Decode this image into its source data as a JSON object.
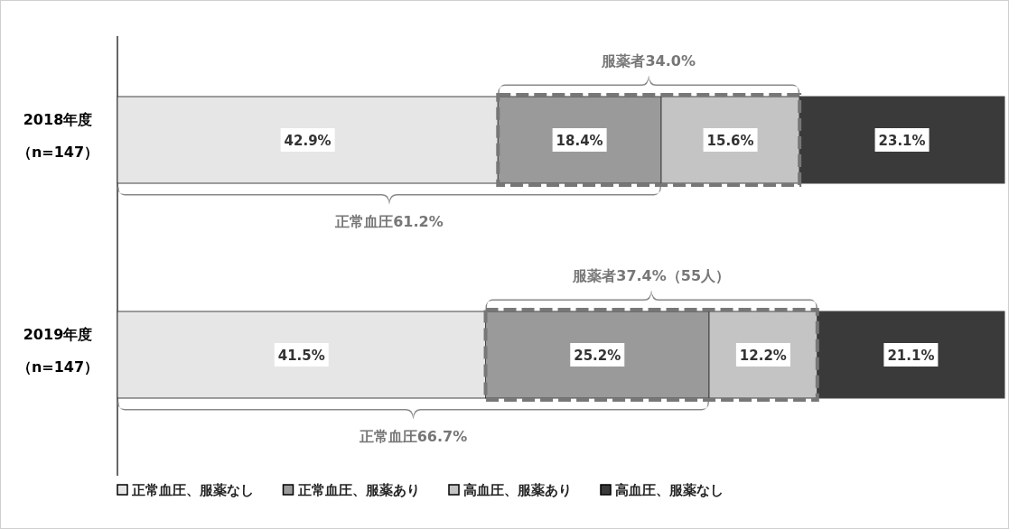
{
  "chart_data": {
    "type": "bar",
    "orientation": "horizontal",
    "stacked": true,
    "categories": [
      "2018年度（n=147）",
      "2019年度（n=147）"
    ],
    "xlim": [
      0,
      100
    ],
    "tick_labels": "y",
    "legend": "bottom",
    "series": [
      {
        "name": "正常血圧、服薬なし",
        "color": "#e6e6e6",
        "values": [
          42.9,
          41.5
        ],
        "value_labels": [
          "42.9%",
          "41.5%"
        ]
      },
      {
        "name": "正常血圧、服薬あり",
        "color": "#9a9a9a",
        "values": [
          18.4,
          25.2
        ],
        "value_labels": [
          "18.4%",
          "25.2%"
        ]
      },
      {
        "name": "高血圧、服薬あり",
        "color": "#c4c4c4",
        "values": [
          15.6,
          12.2
        ],
        "value_labels": [
          "15.6%",
          "12.2%"
        ]
      },
      {
        "name": "高血圧、服薬なし",
        "color": "#3a3a3a",
        "values": [
          23.1,
          21.1
        ],
        "value_labels": [
          "23.1%",
          "21.1%"
        ]
      }
    ],
    "annotations": [
      "服薬者34.0%",
      "正常血圧61.2%",
      "服薬者37.4%（55人）",
      "正常血圧66.7%"
    ]
  }
}
